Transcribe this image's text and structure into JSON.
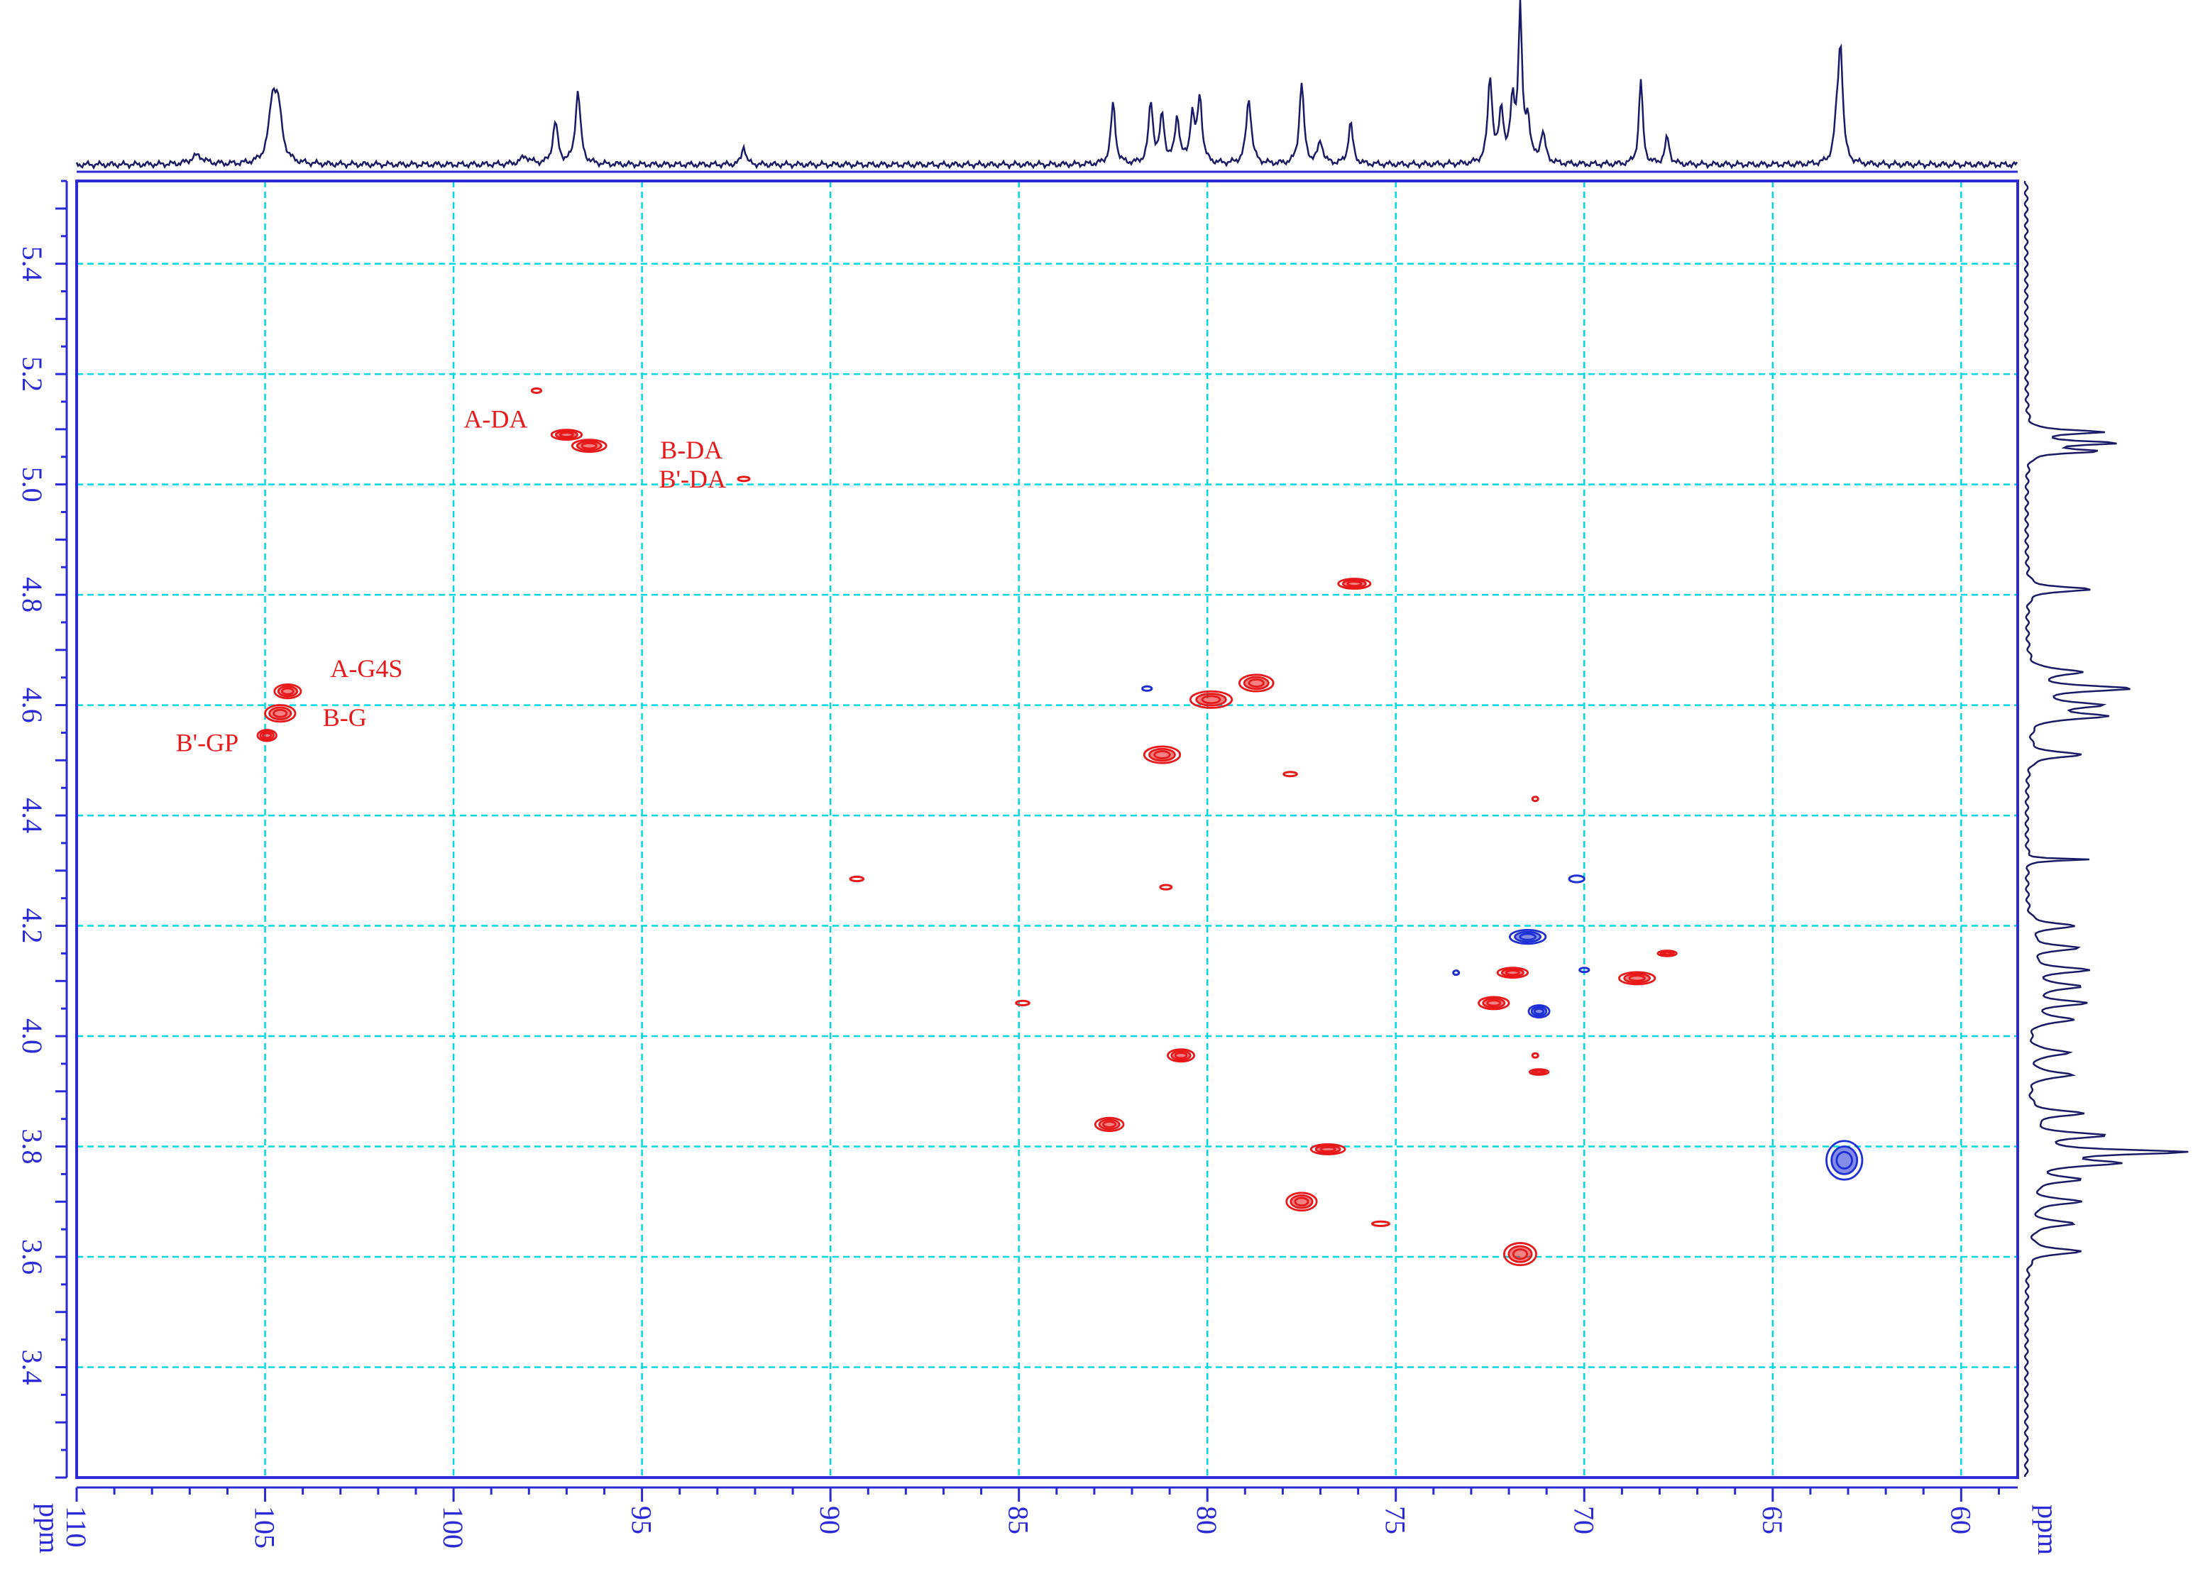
{
  "chart_data": {
    "type": "heatmap",
    "title": "",
    "xlabel": "ppm",
    "ylabel": "ppm",
    "xlim": [
      110,
      58.5
    ],
    "ylim": [
      5.55,
      3.2
    ],
    "x_reversed": true,
    "y_reversed": true,
    "x_ticks": [
      110,
      105,
      100,
      95,
      90,
      85,
      80,
      75,
      70,
      65,
      60
    ],
    "x_tick_labels": [
      "110",
      "105",
      "100",
      "95",
      "90",
      "85",
      "80",
      "75",
      "70",
      "65",
      "60"
    ],
    "y_ticks": [
      5.4,
      5.2,
      5.0,
      4.8,
      4.6,
      4.4,
      4.2,
      4.0,
      3.8,
      3.6,
      3.4
    ],
    "y_tick_labels": [
      "5.4",
      "5.2",
      "5.0",
      "4.8",
      "4.6",
      "4.4",
      "4.2",
      "4.0",
      "3.8",
      "3.6",
      "3.4"
    ],
    "y_gridlines": [
      5.4,
      5.2,
      5.0,
      4.8,
      4.6,
      4.4,
      4.2,
      4.0,
      3.8,
      3.6,
      3.4,
      3.2
    ],
    "grid": true,
    "grid_color": "#00d8e0",
    "colors": {
      "positive": "#e8191b",
      "negative": "#1e2fd6",
      "frame": "#2b2bd6",
      "projection": "#1a1a66"
    },
    "cross_peaks": [
      {
        "x": 104.4,
        "y": 4.625,
        "wx": 0.7,
        "wy": 0.025,
        "sign": "positive",
        "label": "A-G4S"
      },
      {
        "x": 104.6,
        "y": 4.585,
        "wx": 0.8,
        "wy": 0.03,
        "sign": "positive",
        "label": "B-G"
      },
      {
        "x": 104.95,
        "y": 4.545,
        "wx": 0.5,
        "wy": 0.02,
        "sign": "positive",
        "label": "B'-GP"
      },
      {
        "x": 97.8,
        "y": 5.17,
        "wx": 0.25,
        "wy": 0.008,
        "sign": "positive",
        "label": ""
      },
      {
        "x": 97.0,
        "y": 5.09,
        "wx": 0.8,
        "wy": 0.018,
        "sign": "positive",
        "label": "A-DA"
      },
      {
        "x": 96.4,
        "y": 5.07,
        "wx": 0.9,
        "wy": 0.022,
        "sign": "positive",
        "label": "B-DA"
      },
      {
        "x": 92.3,
        "y": 5.01,
        "wx": 0.3,
        "wy": 0.007,
        "sign": "positive",
        "label": "B'-DA"
      },
      {
        "x": 76.1,
        "y": 4.82,
        "wx": 0.85,
        "wy": 0.018,
        "sign": "positive",
        "label": ""
      },
      {
        "x": 78.7,
        "y": 4.64,
        "wx": 0.9,
        "wy": 0.03,
        "sign": "positive",
        "label": ""
      },
      {
        "x": 79.9,
        "y": 4.61,
        "wx": 1.1,
        "wy": 0.03,
        "sign": "positive",
        "label": ""
      },
      {
        "x": 81.6,
        "y": 4.63,
        "wx": 0.25,
        "wy": 0.008,
        "sign": "negative",
        "label": ""
      },
      {
        "x": 81.2,
        "y": 4.51,
        "wx": 0.95,
        "wy": 0.03,
        "sign": "positive",
        "label": ""
      },
      {
        "x": 77.8,
        "y": 4.475,
        "wx": 0.35,
        "wy": 0.006,
        "sign": "positive",
        "label": ""
      },
      {
        "x": 71.3,
        "y": 4.43,
        "wx": 0.05,
        "wy": 0.006,
        "sign": "positive",
        "label": ""
      },
      {
        "x": 89.3,
        "y": 4.285,
        "wx": 0.35,
        "wy": 0.008,
        "sign": "positive",
        "label": ""
      },
      {
        "x": 81.1,
        "y": 4.27,
        "wx": 0.3,
        "wy": 0.008,
        "sign": "positive",
        "label": ""
      },
      {
        "x": 70.2,
        "y": 4.285,
        "wx": 0.4,
        "wy": 0.012,
        "sign": "negative",
        "label": ""
      },
      {
        "x": 71.5,
        "y": 4.18,
        "wx": 0.95,
        "wy": 0.025,
        "sign": "negative",
        "label": ""
      },
      {
        "x": 67.8,
        "y": 4.15,
        "wx": 0.5,
        "wy": 0.01,
        "sign": "positive",
        "label": ""
      },
      {
        "x": 71.9,
        "y": 4.115,
        "wx": 0.8,
        "wy": 0.018,
        "sign": "positive",
        "label": ""
      },
      {
        "x": 68.6,
        "y": 4.105,
        "wx": 0.95,
        "wy": 0.022,
        "sign": "positive",
        "label": ""
      },
      {
        "x": 73.4,
        "y": 4.115,
        "wx": 0.12,
        "wy": 0.004,
        "sign": "negative",
        "label": ""
      },
      {
        "x": 70.0,
        "y": 4.12,
        "wx": 0.25,
        "wy": 0.004,
        "sign": "negative",
        "label": ""
      },
      {
        "x": 72.4,
        "y": 4.06,
        "wx": 0.8,
        "wy": 0.022,
        "sign": "positive",
        "label": ""
      },
      {
        "x": 71.2,
        "y": 4.045,
        "wx": 0.55,
        "wy": 0.022,
        "sign": "negative",
        "label": ""
      },
      {
        "x": 84.9,
        "y": 4.06,
        "wx": 0.35,
        "wy": 0.008,
        "sign": "positive",
        "label": ""
      },
      {
        "x": 80.7,
        "y": 3.965,
        "wx": 0.7,
        "wy": 0.022,
        "sign": "positive",
        "label": ""
      },
      {
        "x": 71.3,
        "y": 3.965,
        "wx": 0.15,
        "wy": 0.005,
        "sign": "positive",
        "label": ""
      },
      {
        "x": 71.2,
        "y": 3.935,
        "wx": 0.5,
        "wy": 0.01,
        "sign": "positive",
        "label": ""
      },
      {
        "x": 82.6,
        "y": 3.84,
        "wx": 0.75,
        "wy": 0.024,
        "sign": "positive",
        "label": ""
      },
      {
        "x": 76.8,
        "y": 3.795,
        "wx": 0.9,
        "wy": 0.018,
        "sign": "positive",
        "label": ""
      },
      {
        "x": 63.1,
        "y": 3.775,
        "wx": 0.95,
        "wy": 0.07,
        "sign": "negative",
        "label": ""
      },
      {
        "x": 77.5,
        "y": 3.7,
        "wx": 0.8,
        "wy": 0.032,
        "sign": "positive",
        "label": ""
      },
      {
        "x": 75.4,
        "y": 3.66,
        "wx": 0.45,
        "wy": 0.008,
        "sign": "positive",
        "label": ""
      },
      {
        "x": 71.7,
        "y": 3.605,
        "wx": 0.85,
        "wy": 0.04,
        "sign": "positive",
        "label": ""
      }
    ],
    "f2_projection_13C": {
      "peaks": [
        {
          "x": 104.8,
          "h": 0.38,
          "w": 0.12
        },
        {
          "x": 104.65,
          "h": 0.32,
          "w": 0.12
        },
        {
          "x": 106.8,
          "h": 0.06,
          "w": 0.2
        },
        {
          "x": 97.3,
          "h": 0.28,
          "w": 0.08
        },
        {
          "x": 96.7,
          "h": 0.49,
          "w": 0.08
        },
        {
          "x": 98.1,
          "h": 0.05,
          "w": 0.15
        },
        {
          "x": 92.3,
          "h": 0.13,
          "w": 0.06
        },
        {
          "x": 82.5,
          "h": 0.41,
          "w": 0.07
        },
        {
          "x": 81.5,
          "h": 0.41,
          "w": 0.07
        },
        {
          "x": 81.2,
          "h": 0.32,
          "w": 0.07
        },
        {
          "x": 80.8,
          "h": 0.31,
          "w": 0.07
        },
        {
          "x": 80.4,
          "h": 0.32,
          "w": 0.07
        },
        {
          "x": 80.2,
          "h": 0.44,
          "w": 0.07
        },
        {
          "x": 78.9,
          "h": 0.44,
          "w": 0.08
        },
        {
          "x": 77.5,
          "h": 0.55,
          "w": 0.07
        },
        {
          "x": 77.0,
          "h": 0.15,
          "w": 0.08
        },
        {
          "x": 76.2,
          "h": 0.28,
          "w": 0.07
        },
        {
          "x": 72.5,
          "h": 0.58,
          "w": 0.07
        },
        {
          "x": 72.2,
          "h": 0.35,
          "w": 0.07
        },
        {
          "x": 71.9,
          "h": 0.4,
          "w": 0.07
        },
        {
          "x": 71.7,
          "h": 1.0,
          "w": 0.06
        },
        {
          "x": 71.5,
          "h": 0.28,
          "w": 0.07
        },
        {
          "x": 71.1,
          "h": 0.2,
          "w": 0.08
        },
        {
          "x": 68.5,
          "h": 0.57,
          "w": 0.06
        },
        {
          "x": 67.8,
          "h": 0.18,
          "w": 0.07
        },
        {
          "x": 63.2,
          "h": 0.75,
          "w": 0.07
        },
        {
          "x": 63.3,
          "h": 0.22,
          "w": 0.08
        }
      ]
    },
    "f1_projection_1H": {
      "peaks": [
        {
          "y": 5.095,
          "h": 0.5,
          "w": 0.004
        },
        {
          "y": 5.075,
          "h": 0.58,
          "w": 0.004
        },
        {
          "y": 5.06,
          "h": 0.45,
          "w": 0.004
        },
        {
          "y": 4.81,
          "h": 0.42,
          "w": 0.005
        },
        {
          "y": 4.66,
          "h": 0.35,
          "w": 0.006
        },
        {
          "y": 4.63,
          "h": 0.65,
          "w": 0.006
        },
        {
          "y": 4.6,
          "h": 0.45,
          "w": 0.006
        },
        {
          "y": 4.58,
          "h": 0.5,
          "w": 0.006
        },
        {
          "y": 4.51,
          "h": 0.35,
          "w": 0.006
        },
        {
          "y": 4.32,
          "h": 0.42,
          "w": 0.002
        },
        {
          "y": 4.2,
          "h": 0.3,
          "w": 0.006
        },
        {
          "y": 4.16,
          "h": 0.32,
          "w": 0.006
        },
        {
          "y": 4.12,
          "h": 0.38,
          "w": 0.006
        },
        {
          "y": 4.09,
          "h": 0.34,
          "w": 0.006
        },
        {
          "y": 4.06,
          "h": 0.36,
          "w": 0.006
        },
        {
          "y": 4.03,
          "h": 0.3,
          "w": 0.006
        },
        {
          "y": 3.97,
          "h": 0.28,
          "w": 0.006
        },
        {
          "y": 3.93,
          "h": 0.3,
          "w": 0.006
        },
        {
          "y": 3.86,
          "h": 0.35,
          "w": 0.006
        },
        {
          "y": 3.82,
          "h": 0.48,
          "w": 0.006
        },
        {
          "y": 3.79,
          "h": 1.0,
          "w": 0.005
        },
        {
          "y": 3.77,
          "h": 0.55,
          "w": 0.006
        },
        {
          "y": 3.74,
          "h": 0.32,
          "w": 0.006
        },
        {
          "y": 3.7,
          "h": 0.34,
          "w": 0.006
        },
        {
          "y": 3.66,
          "h": 0.3,
          "w": 0.006
        },
        {
          "y": 3.61,
          "h": 0.35,
          "w": 0.006
        }
      ]
    }
  }
}
